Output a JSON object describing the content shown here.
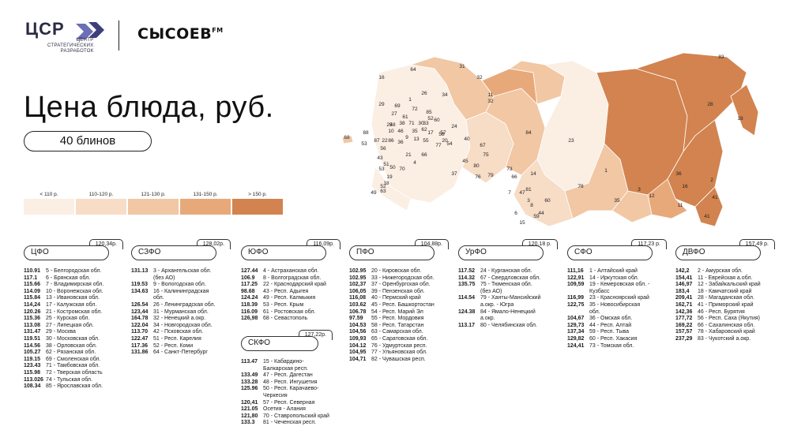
{
  "header": {
    "csr_logo_text": "ЦСР",
    "csr_logo_sub": "ЦЕНТР\nСТРАТЕГИЧЕСКИХ\nРАЗРАБОТОК",
    "sysoev_logo_text": "СЫСОЕВ",
    "sysoev_logo_suffix": "FM"
  },
  "title": "Цена блюда, руб.",
  "subtitle": "40 блинов",
  "legend": [
    {
      "label": "< 110 р.",
      "color": "#fbeee3"
    },
    {
      "label": "110-120 р.",
      "color": "#f7dcc6"
    },
    {
      "label": "121-130 р.",
      "color": "#f1c7a4"
    },
    {
      "label": "131-150 р.",
      "color": "#e8a97a"
    },
    {
      "label": "> 150 р.",
      "color": "#d2834f"
    }
  ],
  "map": {
    "labels": [
      "64",
      "31",
      "32",
      "83",
      "16",
      "26",
      "34",
      "32",
      "28",
      "18",
      "29",
      "69",
      "72",
      "85",
      "11",
      "33",
      "52",
      "27",
      "2",
      "58",
      "38",
      "71",
      "30",
      "25",
      "61",
      "60",
      "46",
      "35",
      "10",
      "9",
      "13",
      "62",
      "17",
      "57",
      "22",
      "20",
      "24",
      "56",
      "88",
      "53",
      "87",
      "86",
      "36",
      "55",
      "77",
      "54",
      "40",
      "84",
      "68",
      "43",
      "51",
      "21",
      "66",
      "4",
      "50",
      "53",
      "70",
      "19",
      "18",
      "37",
      "45",
      "80",
      "67",
      "23",
      "3",
      "7",
      "41",
      "52",
      "49",
      "63",
      "76",
      "79",
      "75",
      "73",
      "14",
      "78",
      "16",
      "48",
      "47",
      "6",
      "81",
      "1",
      "35",
      "12",
      "11",
      "41",
      "60",
      "59",
      "44",
      "15",
      "36",
      "66",
      "8",
      "1",
      "3"
    ]
  },
  "districts": [
    {
      "name": "ЦФО",
      "avg": "120,34р.",
      "rows": [
        [
          "110.91",
          "5 - Белгородская обл."
        ],
        [
          "117.1",
          "6 - Брянская обл."
        ],
        [
          "115.66",
          "7 - Владимирская обл."
        ],
        [
          "114.09",
          "10 - Воронежская обл."
        ],
        [
          "115.84",
          "13 - Ивановская обл."
        ],
        [
          "114,24",
          "17 - Калужская обл."
        ],
        [
          "120.26",
          "21 - Костромская обл."
        ],
        [
          "115.36",
          "25 - Курская обл."
        ],
        [
          "113.08",
          "27 - Липецкая обл."
        ],
        [
          "131.47",
          "29 - Москва"
        ],
        [
          "119.51",
          "30 - Московская обл."
        ],
        [
          "114.56",
          "38 - Орловская обл."
        ],
        [
          "105.27",
          "62 - Рязанская обл."
        ],
        [
          "119.15",
          "69 - Смоленская обл."
        ],
        [
          "123.43",
          "71 - Тамбовская обл."
        ],
        [
          "115.98",
          "72 - Тверская область"
        ],
        [
          "113.026",
          "74 - Тульская обл."
        ],
        [
          "108.34",
          "85 - Ярославская обл."
        ]
      ]
    },
    {
      "name": "СЗФО",
      "avg": "128,02р.",
      "rows": [
        [
          "131.13",
          "3 - Архангельская обл."
        ],
        [
          "",
          "(без АО)"
        ],
        [
          "119.53",
          "9 - Вологодская обл."
        ],
        [
          "134.63",
          "16 - Калининградская"
        ],
        [
          "",
          "обл."
        ],
        [
          "126.54",
          "26 - Ленинградская обл."
        ],
        [
          "123,44",
          "31 - Мурманская обл."
        ],
        [
          "164.78",
          "32 - Ненецкий а.окр."
        ],
        [
          "122.04",
          "34 - Новгородская обл."
        ],
        [
          "113.70",
          "42 - Псковская обл."
        ],
        [
          "122.47",
          "51 - Респ. Карелия"
        ],
        [
          "117.36",
          "52 - Респ. Коми"
        ],
        [
          "131.86",
          "64 - Санкт-Петербург"
        ]
      ]
    },
    {
      "name": "ЮФО",
      "avg": "116,09р.",
      "rows": [
        [
          "127.44",
          "4 - Астраханская обл."
        ],
        [
          "106.9",
          "8 - Волгоградская обл."
        ],
        [
          "117.25",
          "22 - Краснодарский край"
        ],
        [
          "98.68",
          "43 - Респ. Адыгея"
        ],
        [
          "124.24",
          "49 - Респ. Калмыкия"
        ],
        [
          "118.39",
          "53 - Респ. Крым"
        ],
        [
          "116.09",
          "61 - Ростовская обл."
        ],
        [
          "126,98",
          "68 - Севастополь"
        ]
      ]
    },
    {
      "name": "СКФО",
      "avg": "127,22р.",
      "rows": [
        [
          "113.47",
          "15 - Кабардино-"
        ],
        [
          "",
          "Балкарская респ."
        ],
        [
          "133.49",
          "47 - Респ. Дагестан"
        ],
        [
          "133.28",
          "48 - Респ. Ингушетия"
        ],
        [
          "125.96",
          "50 - Респ. Карачаево-"
        ],
        [
          "",
          "Черкесия"
        ],
        [
          "120,41",
          "57 - Респ. Северная"
        ],
        [
          "121.05",
          "Осетия - Алания"
        ],
        [
          "",
          ""
        ],
        [
          "121,80",
          "70 - Ставропольский край"
        ],
        [
          "133.3",
          "81 - Чеченская респ."
        ]
      ]
    },
    {
      "name": "ПФО",
      "avg": "104,88р.",
      "rows": [
        [
          "102.95",
          "20 - Кировская обл."
        ],
        [
          "102.95",
          "33 - Нижегородская обл."
        ],
        [
          "102,37",
          "37 - Оренбургская обл."
        ],
        [
          "106,05",
          "39 - Пензенская обл."
        ],
        [
          "116,08",
          "40 - Пермский край"
        ],
        [
          "103.62",
          "45 - Респ. Башкортостан"
        ],
        [
          "106.78",
          "54 - Респ. Марий Эл"
        ],
        [
          "97.59",
          "55 - Респ. Мордовия"
        ],
        [
          "104.53",
          "58 - Респ. Татарстан"
        ],
        [
          "104,56",
          "63 - Самарская обл."
        ],
        [
          "109,93",
          "65 - Саратовская обл."
        ],
        [
          "104.12",
          "76 - Удмуртская респ."
        ],
        [
          "104,95",
          "77 - Ульяновская обл."
        ],
        [
          "104,71",
          "82 - Чувашская респ."
        ]
      ]
    },
    {
      "name": "УрФО",
      "avg": "120,18 р.",
      "rows": [
        [
          "117.52",
          "24 - Курганская обл."
        ],
        [
          "114.32",
          "67 - Свердловская обл."
        ],
        [
          "135.75",
          "75 - Тюменская обл."
        ],
        [
          "",
          "(без АО)"
        ],
        [
          "114.54",
          "79 - Ханты-Мансийский"
        ],
        [
          "",
          "а.окр. - Югра"
        ],
        [
          "124.38",
          "84 - Ямало-Ненецкий"
        ],
        [
          "",
          "а.окр."
        ],
        [
          "113.17",
          "80 - Челябинская обл."
        ]
      ]
    },
    {
      "name": "СФО",
      "avg": "117,23 р.",
      "rows": [
        [
          "111,16",
          "1 - Алтайский край"
        ],
        [
          "122,91",
          "14 - Иркутская обл."
        ],
        [
          "109,59",
          "19 - Кемеровская обл. -"
        ],
        [
          "",
          "Кузбасс"
        ],
        [
          "116,99",
          "23 - Красноярский край"
        ],
        [
          "122,75",
          "35 - Новосибирская"
        ],
        [
          "",
          "обл."
        ],
        [
          "104,67",
          "36 - Омская обл."
        ],
        [
          "129,73",
          "44 - Респ. Алтай"
        ],
        [
          "137,34",
          "59 - Респ. Тыва"
        ],
        [
          "129,82",
          "60 - Респ. Хакасия"
        ],
        [
          "124,41",
          "73 - Томская обл."
        ]
      ]
    },
    {
      "name": "ДВФО",
      "avg": "157,49 р.",
      "rows": [
        [
          "142,2",
          "2 - Амурская обл."
        ],
        [
          "154,41",
          "11 - Еврейская а.обл."
        ],
        [
          "146,97",
          "12 - Забайкальский край"
        ],
        [
          "183,4",
          "18 - Камчатский край"
        ],
        [
          "209,41",
          "28 - Магаданская обл."
        ],
        [
          "162,71",
          "41 - Приморский край"
        ],
        [
          "142,36",
          "46 - Респ. Бурятия"
        ],
        [
          "177,72",
          "56 - Респ. Саха (Якутия)"
        ],
        [
          "169,22",
          "66 - Сахалинская обл."
        ],
        [
          "157,57",
          "78 - Хабаровский край"
        ],
        [
          "237,29",
          "83 - Чукотский а.окр."
        ]
      ]
    }
  ]
}
